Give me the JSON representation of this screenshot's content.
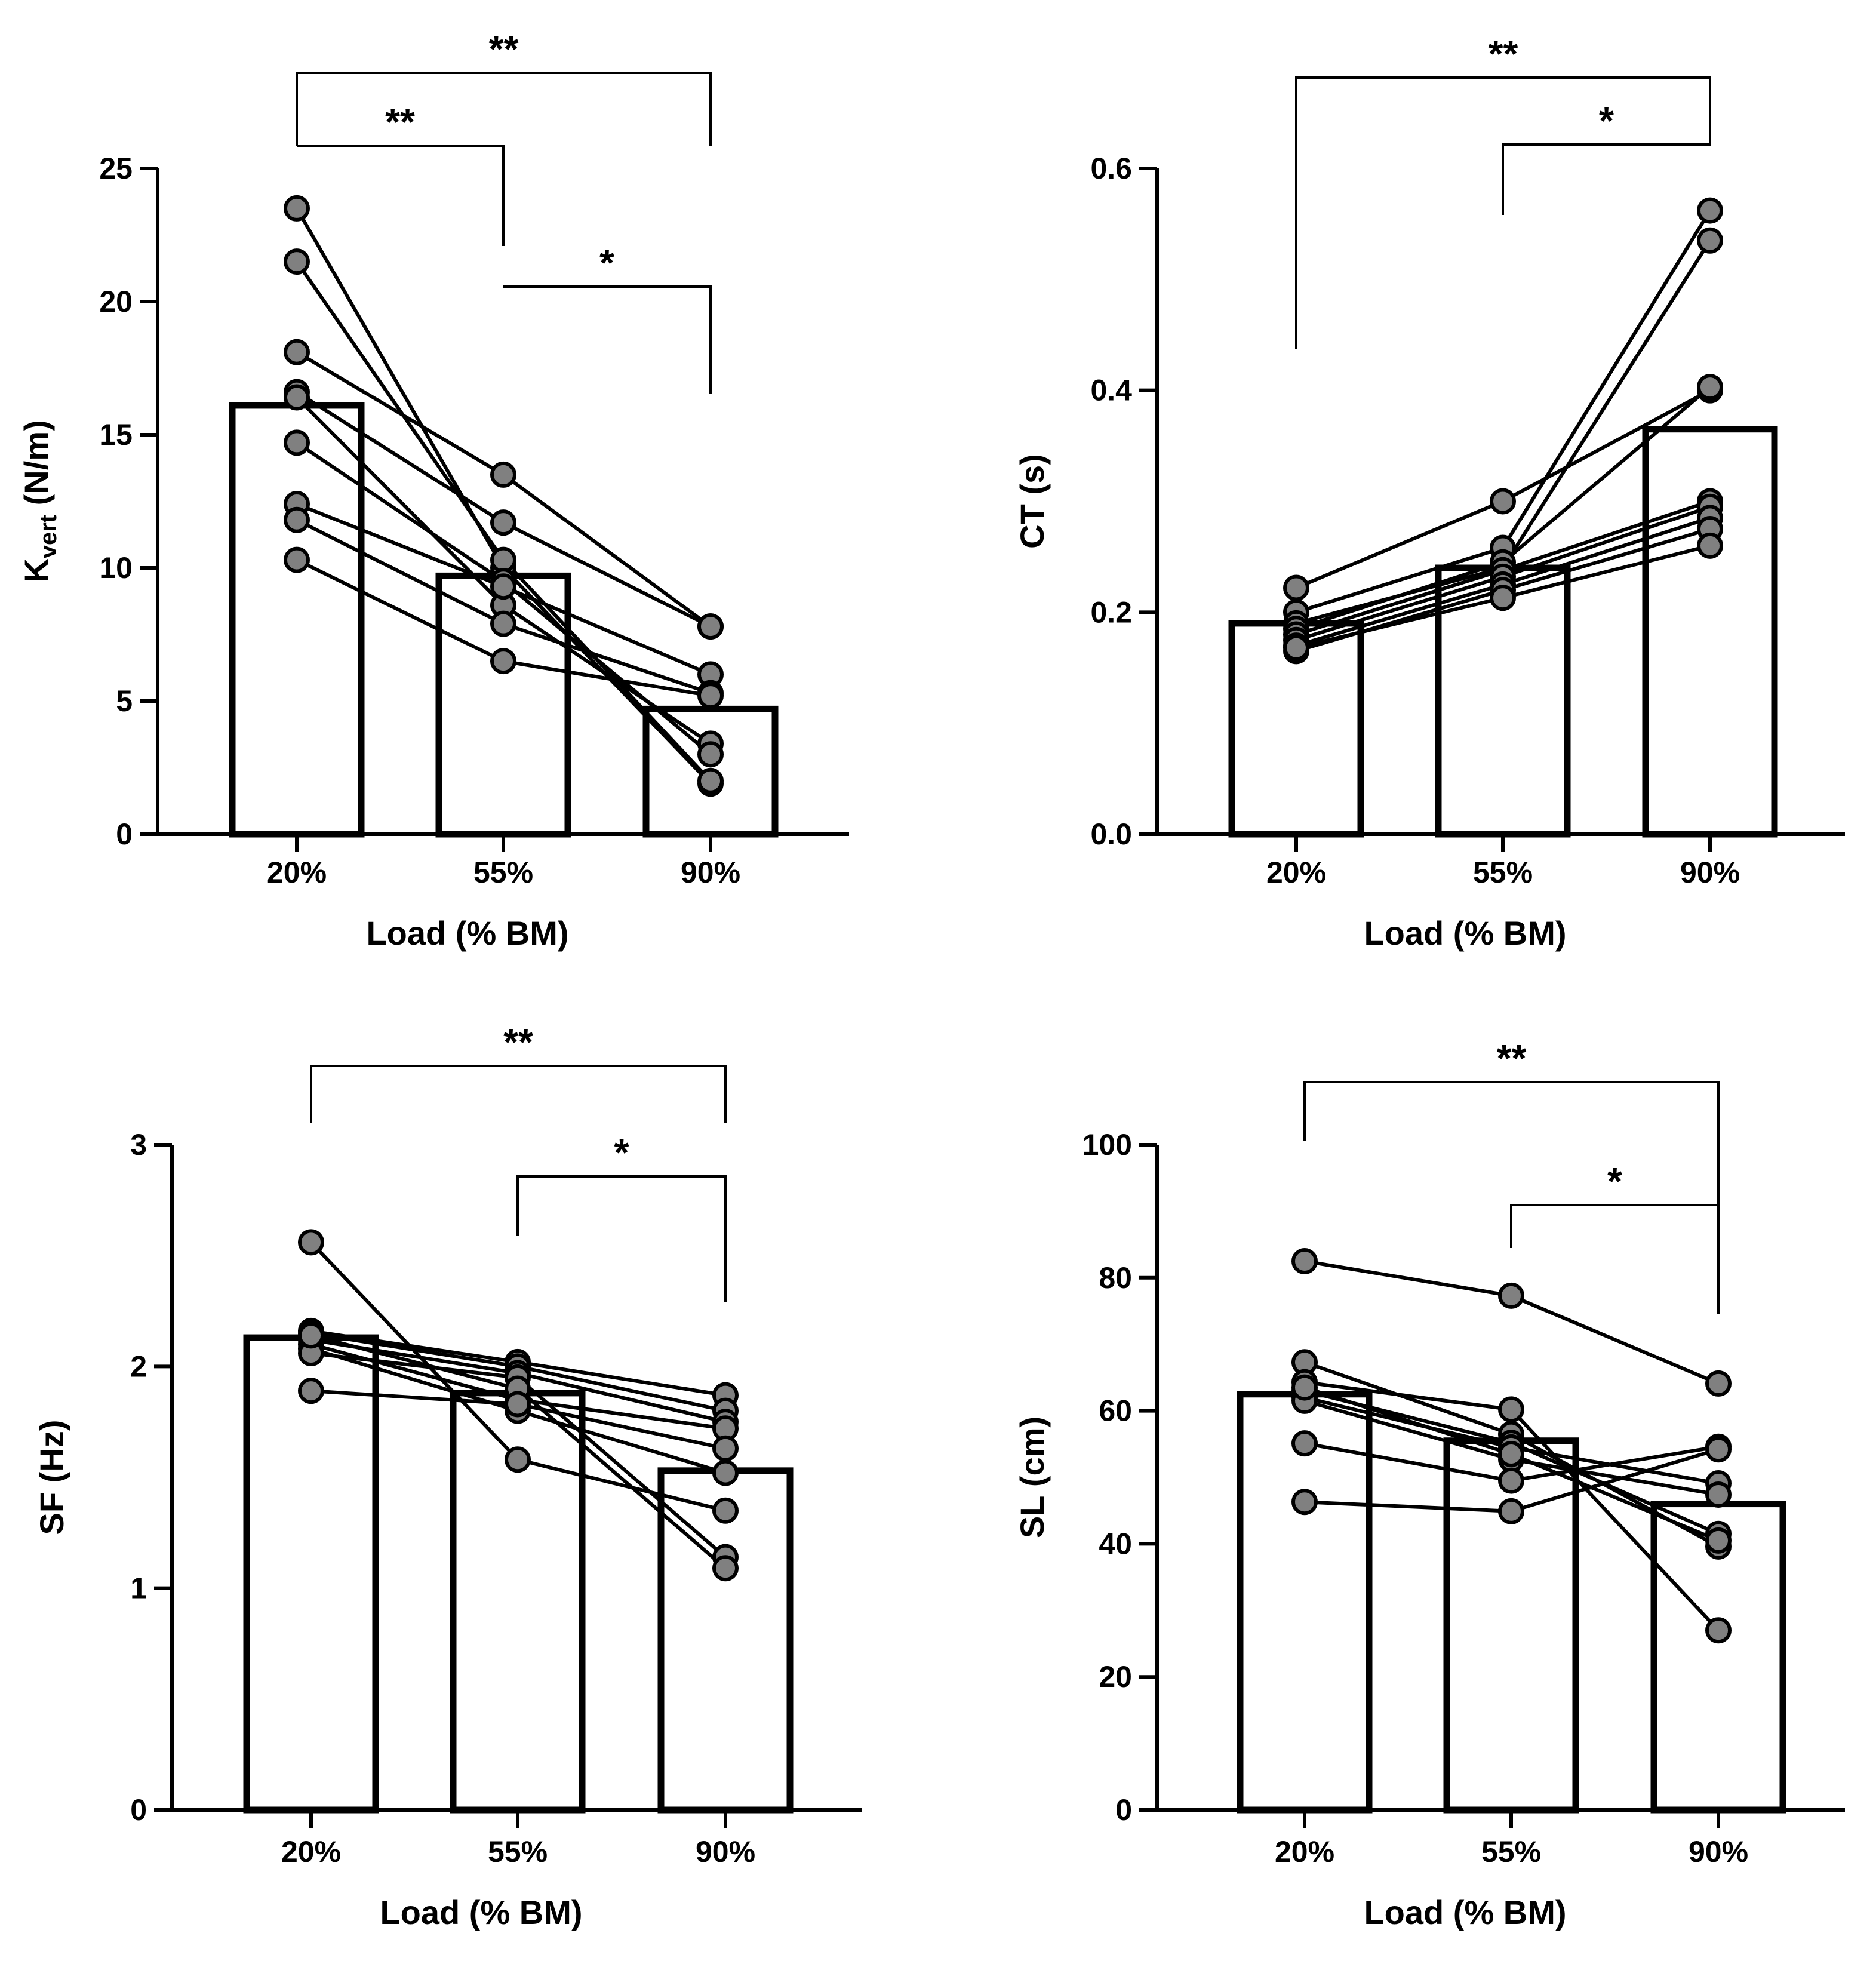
{
  "chart_data": [
    {
      "type": "bar",
      "panel": "Kvert",
      "categories": [
        "20%",
        "55%",
        "90%"
      ],
      "values": [
        16.1,
        9.7,
        4.7
      ],
      "ylabel": "K",
      "ylabel_sub": "vert",
      "ylabel_unit": " (N/m)",
      "xlabel": "Load (% BM)",
      "ylim": [
        0,
        25
      ],
      "yticks": [
        0,
        5,
        10,
        15,
        20,
        25
      ],
      "ytick_labels": [
        "0",
        "5",
        "10",
        "15",
        "20",
        "25"
      ],
      "subjects": [
        [
          23.5,
          10.0,
          1.9
        ],
        [
          21.5,
          10.3,
          2.0
        ],
        [
          18.1,
          13.5,
          7.8
        ],
        [
          16.6,
          11.7,
          7.8
        ],
        [
          16.4,
          8.6,
          3.4
        ],
        [
          14.7,
          9.5,
          3.0
        ],
        [
          12.4,
          9.3,
          6.0
        ],
        [
          11.8,
          7.9,
          5.3
        ],
        [
          10.3,
          6.5,
          5.2
        ]
      ],
      "significance": [
        {
          "from": "20%",
          "to": "90%",
          "label": "**"
        },
        {
          "from": "20%",
          "to": "55%",
          "label": "**"
        },
        {
          "from": "55%",
          "to": "90%",
          "label": "*"
        }
      ]
    },
    {
      "type": "bar",
      "panel": "CT",
      "categories": [
        "20%",
        "55%",
        "90%"
      ],
      "values": [
        0.19,
        0.24,
        0.365
      ],
      "ylabel": "CT (s)",
      "xlabel": "Load (% BM)",
      "ylim": [
        0,
        0.6
      ],
      "yticks": [
        0,
        0.2,
        0.4,
        0.6
      ],
      "ytick_labels": [
        "0.0",
        "0.2",
        "0.4",
        "0.6"
      ],
      "subjects": [
        [
          0.222,
          0.3,
          0.4
        ],
        [
          0.2,
          0.258,
          0.562
        ],
        [
          0.19,
          0.24,
          0.535
        ],
        [
          0.185,
          0.245,
          0.403
        ],
        [
          0.18,
          0.238,
          0.3
        ],
        [
          0.175,
          0.232,
          0.295
        ],
        [
          0.17,
          0.225,
          0.285
        ],
        [
          0.165,
          0.22,
          0.275
        ],
        [
          0.168,
          0.213,
          0.26
        ]
      ],
      "significance": [
        {
          "from": "20%",
          "to": "90%",
          "label": "**"
        },
        {
          "from": "55%",
          "to": "90%",
          "label": "*"
        }
      ]
    },
    {
      "type": "bar",
      "panel": "SF",
      "categories": [
        "20%",
        "55%",
        "90%"
      ],
      "values": [
        2.13,
        1.88,
        1.53
      ],
      "ylabel": "SF (Hz)",
      "xlabel": "Load (% BM)",
      "ylim": [
        0,
        3
      ],
      "yticks": [
        0,
        1,
        2,
        3
      ],
      "ytick_labels": [
        "0",
        "1",
        "2",
        "3"
      ],
      "subjects": [
        [
          2.56,
          1.58,
          1.35
        ],
        [
          2.16,
          2.02,
          1.87
        ],
        [
          2.15,
          2.0,
          1.8
        ],
        [
          2.12,
          1.97,
          1.75
        ],
        [
          2.1,
          1.85,
          1.72
        ],
        [
          2.08,
          1.8,
          1.52
        ],
        [
          2.06,
          1.95,
          1.14
        ],
        [
          2.14,
          1.9,
          1.09
        ],
        [
          1.89,
          1.83,
          1.63
        ]
      ],
      "significance": [
        {
          "from": "20%",
          "to": "90%",
          "label": "**"
        },
        {
          "from": "55%",
          "to": "90%",
          "label": "*"
        }
      ]
    },
    {
      "type": "bar",
      "panel": "SL",
      "categories": [
        "20%",
        "55%",
        "90%"
      ],
      "values": [
        62.5,
        55.5,
        46.0
      ],
      "ylabel": "SL (cm)",
      "xlabel": "Load (% BM)",
      "ylim": [
        0,
        100
      ],
      "yticks": [
        0,
        20,
        40,
        60,
        80,
        100
      ],
      "ytick_labels": [
        "0",
        "20",
        "40",
        "60",
        "80",
        "100"
      ],
      "subjects": [
        [
          82.5,
          77.3,
          64.1
        ],
        [
          67.3,
          56.5,
          39.6
        ],
        [
          64.3,
          60.2,
          27.0
        ],
        [
          63.0,
          55.2,
          41.5
        ],
        [
          62.0,
          54.5,
          49.1
        ],
        [
          61.5,
          52.7,
          47.4
        ],
        [
          55.1,
          49.5,
          54.6
        ],
        [
          46.3,
          44.9,
          54.2
        ],
        [
          63.5,
          53.5,
          40.5
        ]
      ],
      "significance": [
        {
          "from": "20%",
          "to": "90%",
          "label": "**"
        },
        {
          "from": "55%",
          "to": "90%",
          "label": "*"
        }
      ]
    }
  ]
}
